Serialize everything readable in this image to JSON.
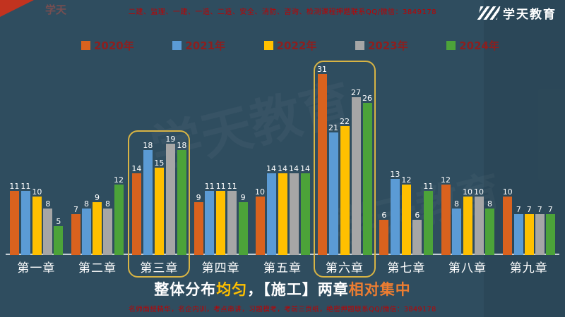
{
  "page": {
    "bg_color": "#2f4d5f",
    "top_notice": "二建、监理、一建、一造、二造、安全、消防、咨询、检测课程押题联系QQ/微信：3849178",
    "bottom_notice": "名师面授精华，名企内训，考点串讲，习题模考，考前三页纸，绝密押题联系QQ/微信：3849178",
    "brand": "学天教育",
    "watermark_small": "学天",
    "watermark_large": "学天教育"
  },
  "caption": {
    "parts": [
      {
        "text": "整体分布",
        "color": "#ffffff"
      },
      {
        "text": "均匀",
        "color": "#ffc000"
      },
      {
        "text": "，【施工】两章",
        "color": "#ffffff"
      },
      {
        "text": "相对集中",
        "color": "#ed7d31"
      }
    ]
  },
  "chart_data": {
    "type": "bar",
    "title": "",
    "xlabel": "",
    "ylabel": "",
    "categories": [
      "第一章",
      "第二章",
      "第三章",
      "第四章",
      "第五章",
      "第六章",
      "第七章",
      "第八章",
      "第九章"
    ],
    "series": [
      {
        "name": "2020年",
        "color": "#d9621e",
        "values": [
          11,
          7,
          14,
          9,
          10,
          31,
          6,
          12,
          10
        ]
      },
      {
        "name": "2021年",
        "color": "#5b9bd5",
        "values": [
          11,
          8,
          18,
          11,
          14,
          21,
          13,
          8,
          7
        ]
      },
      {
        "name": "2022年",
        "color": "#ffc000",
        "values": [
          10,
          9,
          15,
          11,
          14,
          22,
          12,
          10,
          7
        ]
      },
      {
        "name": "2023年",
        "color": "#a6a6a6",
        "values": [
          8,
          8,
          19,
          11,
          14,
          27,
          6,
          10,
          7
        ]
      },
      {
        "name": "2024年",
        "color": "#4ca339",
        "values": [
          5,
          12,
          18,
          9,
          14,
          26,
          11,
          8,
          7
        ]
      }
    ],
    "highlighted_categories": [
      "第三章",
      "第六章"
    ],
    "highlight_box_color": "#d8b444",
    "axis_line_color": "#c4ced4",
    "ylim": [
      0,
      32
    ],
    "grid": false,
    "data_labels": true,
    "legend_position": "top"
  }
}
